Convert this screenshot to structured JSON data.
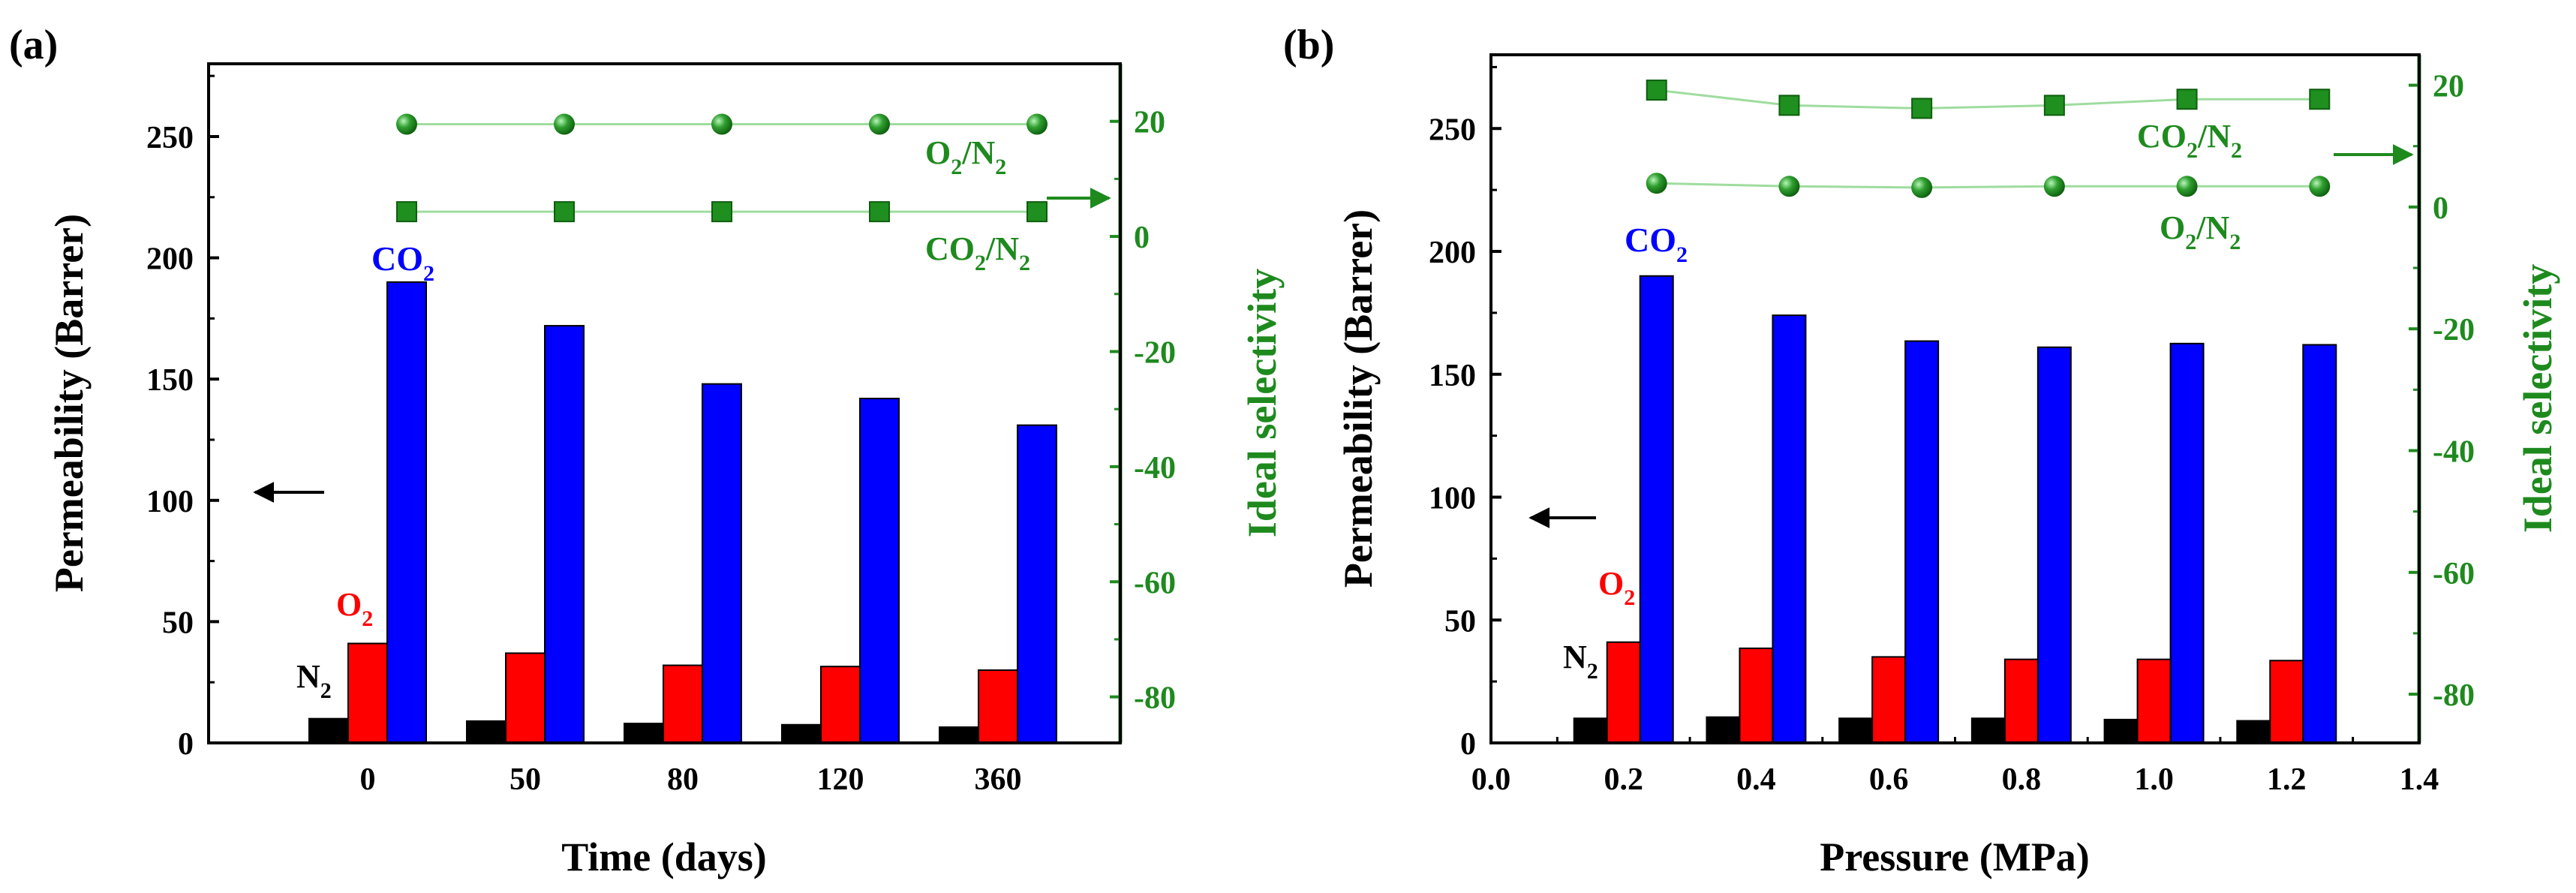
{
  "chart_data": [
    {
      "panel_label": "(a)",
      "type": "bar",
      "xlabel": "Time (days)",
      "ylabel": "Permeability (Barrer)",
      "y2label": "Ideal selectivity",
      "categories": [
        "0",
        "50",
        "80",
        "120",
        "360"
      ],
      "ylim": [
        0,
        280
      ],
      "yticks": [
        0,
        50,
        100,
        150,
        200,
        250
      ],
      "y2lim": [
        -88,
        30
      ],
      "y2ticks": [
        -80,
        -60,
        -40,
        -20,
        0,
        20
      ],
      "series": [
        {
          "name": "N2",
          "color": "#000000",
          "values": [
            10,
            9,
            8,
            7.5,
            6.5
          ]
        },
        {
          "name": "O2",
          "color": "#ff0000",
          "values": [
            41,
            37,
            32,
            31.5,
            30
          ]
        },
        {
          "name": "CO2",
          "color": "#0000ff",
          "values": [
            190,
            172,
            148,
            142,
            131
          ]
        }
      ],
      "selectivity": [
        {
          "name": "O2/N2",
          "marker": "sphere",
          "values": [
            19.5,
            19.5,
            19.5,
            19.5,
            19.5
          ]
        },
        {
          "name": "CO2/N2",
          "marker": "square",
          "values": [
            4.3,
            4.3,
            4.3,
            4.3,
            4.3
          ]
        }
      ],
      "bar_labels": {
        "n2": "N",
        "o2": "O",
        "co2": "CO",
        "sub": "2"
      },
      "line_labels": {
        "o2n2_a": "O",
        "o2n2_b": "/N",
        "co2n2_a": "CO",
        "co2n2_b": "/N",
        "sub": "2"
      }
    },
    {
      "panel_label": "(b)",
      "type": "bar",
      "xlabel": "Pressure (MPa)",
      "ylabel": "Permeability (Barrer)",
      "y2label": "Ideal selectivity",
      "x": [
        0.2,
        0.4,
        0.6,
        0.8,
        1.0,
        1.2
      ],
      "xlim": [
        0.0,
        1.4
      ],
      "xticks": [
        "0.0",
        "0.2",
        "0.4",
        "0.6",
        "0.8",
        "1.0",
        "1.2",
        "1.4"
      ],
      "ylim": [
        0,
        280
      ],
      "yticks": [
        0,
        50,
        100,
        150,
        200,
        250
      ],
      "y2lim": [
        -88,
        25
      ],
      "y2ticks": [
        -80,
        -60,
        -40,
        -20,
        0,
        20
      ],
      "series": [
        {
          "name": "N2",
          "color": "#000000",
          "values": [
            10,
            10.5,
            10,
            10,
            9.5,
            9
          ]
        },
        {
          "name": "O2",
          "color": "#ff0000",
          "values": [
            41,
            38.5,
            35,
            34,
            34,
            33.5
          ]
        },
        {
          "name": "CO2",
          "color": "#0000ff",
          "values": [
            190,
            174,
            163.5,
            161,
            162.5,
            162
          ]
        }
      ],
      "selectivity": [
        {
          "name": "CO2/N2",
          "marker": "square",
          "values": [
            19.2,
            16.7,
            16.2,
            16.7,
            17.7,
            17.7
          ]
        },
        {
          "name": "O2/N2",
          "marker": "sphere",
          "values": [
            3.9,
            3.4,
            3.2,
            3.4,
            3.4,
            3.4
          ]
        }
      ],
      "bar_labels": {
        "n2": "N",
        "o2": "O",
        "co2": "CO",
        "sub": "2"
      },
      "line_labels": {
        "o2n2_a": "O",
        "o2n2_b": "/N",
        "co2n2_a": "CO",
        "co2n2_b": "/N",
        "sub": "2"
      }
    }
  ],
  "colors": {
    "axis": "#000000",
    "secondary_axis": "#1e8a1e",
    "line": "#9fdc9f",
    "marker": "#1f8f1f",
    "marker_dark": "#0e5e0e",
    "marker_light": "#aef0ae"
  }
}
